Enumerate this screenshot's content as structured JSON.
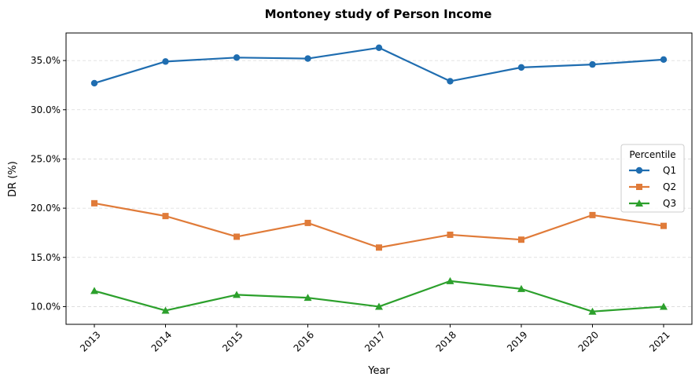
{
  "chart_data": {
    "type": "line",
    "title": "Montoney study of Person Income",
    "xlabel": "Year",
    "ylabel": "DR (%)",
    "categories": [
      "2013",
      "2014",
      "2015",
      "2016",
      "2017",
      "2018",
      "2019",
      "2020",
      "2021"
    ],
    "ylim": [
      8.2,
      37.8
    ],
    "yticks": [
      10,
      15,
      20,
      25,
      30,
      35
    ],
    "ytick_labels": [
      "10.0%",
      "15.0%",
      "20.0%",
      "25.0%",
      "30.0%",
      "35.0%"
    ],
    "grid": "y-dashed",
    "legend": {
      "title": "Percentile",
      "position": "center-right"
    },
    "series": [
      {
        "name": "Q1",
        "color": "#1f6db0",
        "marker": "circle",
        "values": [
          32.7,
          34.9,
          35.3,
          35.2,
          36.3,
          32.9,
          34.3,
          34.6,
          35.1
        ]
      },
      {
        "name": "Q2",
        "color": "#e07b39",
        "marker": "square",
        "values": [
          20.5,
          19.2,
          17.1,
          18.5,
          16.0,
          17.3,
          16.8,
          19.3,
          18.2
        ]
      },
      {
        "name": "Q3",
        "color": "#2ca02c",
        "marker": "triangle",
        "values": [
          11.6,
          9.6,
          11.2,
          10.9,
          10.0,
          12.6,
          11.8,
          9.5,
          10.0
        ]
      }
    ]
  }
}
